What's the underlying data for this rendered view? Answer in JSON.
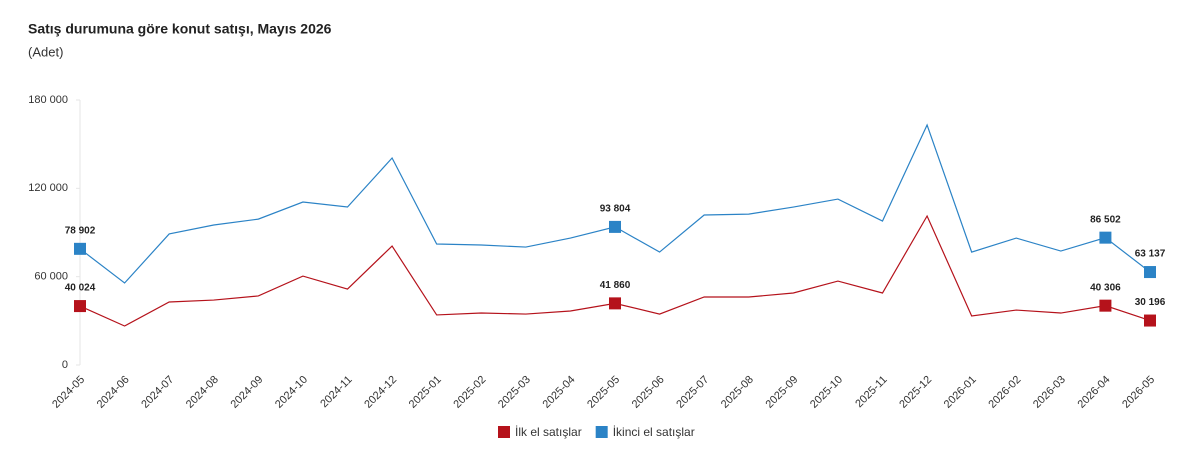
{
  "chart_data": {
    "type": "line",
    "title": "Satış durumuna göre konut satışı, Mayıs 2026",
    "subtitle": "(Adet)",
    "categories": [
      "2024-05",
      "2024-06",
      "2024-07",
      "2024-08",
      "2024-09",
      "2024-10",
      "2024-11",
      "2024-12",
      "2025-01",
      "2025-02",
      "2025-03",
      "2025-04",
      "2025-05",
      "2025-06",
      "2025-07",
      "2025-08",
      "2025-09",
      "2025-10",
      "2025-11",
      "2025-12",
      "2026-01",
      "2026-02",
      "2026-03",
      "2026-04",
      "2026-05"
    ],
    "series": [
      {
        "name": "İlk el satışlar",
        "color": "#b5121b",
        "values": [
          40024,
          26500,
          42800,
          44100,
          46900,
          60400,
          51600,
          80800,
          34000,
          35300,
          34600,
          36700,
          41860,
          34600,
          46200,
          46200,
          48900,
          57000,
          48900,
          101200,
          33300,
          37300,
          35300,
          40306,
          30196
        ],
        "value_labels": [
          "40 024",
          null,
          null,
          null,
          null,
          null,
          null,
          null,
          null,
          null,
          null,
          null,
          "41 860",
          null,
          null,
          null,
          null,
          null,
          null,
          null,
          null,
          null,
          null,
          "40 306",
          "30 196"
        ]
      },
      {
        "name": "İkinci el satışlar",
        "color": "#2b83c6",
        "values": [
          78902,
          55700,
          89000,
          95100,
          99100,
          110700,
          107300,
          140600,
          82200,
          81500,
          80100,
          86200,
          93804,
          76700,
          101900,
          102500,
          107300,
          112700,
          97800,
          163000,
          76700,
          86200,
          77400,
          86502,
          63137
        ],
        "value_labels": [
          "78 902",
          null,
          null,
          null,
          null,
          null,
          null,
          null,
          null,
          null,
          null,
          null,
          "93 804",
          null,
          null,
          null,
          null,
          null,
          null,
          null,
          null,
          null,
          null,
          "86 502",
          "63 137"
        ]
      }
    ],
    "ylim": [
      0,
      180000
    ],
    "yticks": [
      0,
      {
        "value": 60000,
        "label": "60 000"
      },
      {
        "value": 120000,
        "label": "120 000"
      },
      {
        "value": 180000,
        "label": "180 000"
      }
    ],
    "grid": false
  }
}
